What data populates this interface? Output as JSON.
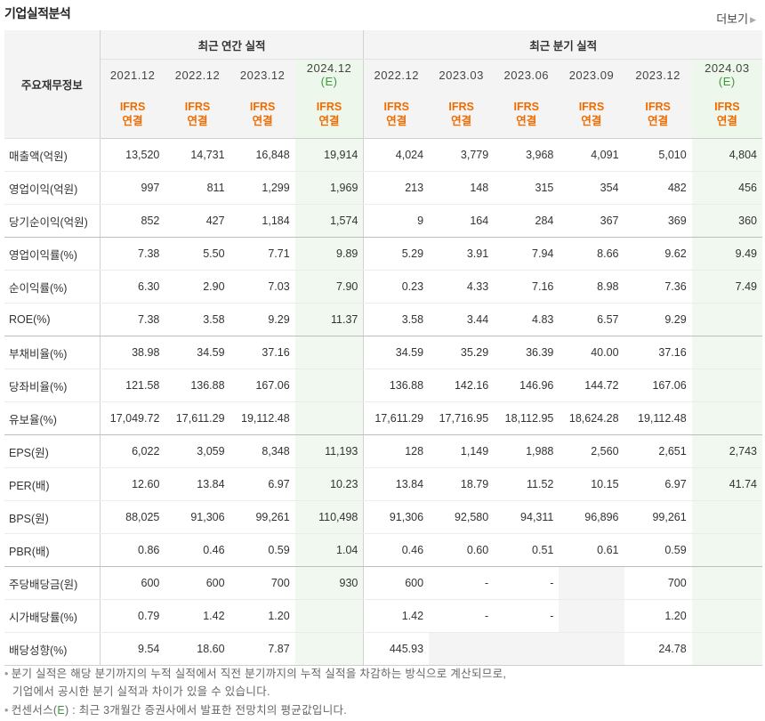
{
  "title": "기업실적분석",
  "more": "더보기",
  "header": {
    "corner": "주요재무정보",
    "annual_group": "최근 연간 실적",
    "quarter_group": "최근 분기 실적",
    "periods": [
      {
        "date": "2021.12",
        "est": "",
        "std": "IFRS",
        "basis": "연결"
      },
      {
        "date": "2022.12",
        "est": "",
        "std": "IFRS",
        "basis": "연결"
      },
      {
        "date": "2023.12",
        "est": "",
        "std": "IFRS",
        "basis": "연결"
      },
      {
        "date": "2024.12",
        "est": "(E)",
        "std": "IFRS",
        "basis": "연결"
      },
      {
        "date": "2022.12",
        "est": "",
        "std": "IFRS",
        "basis": "연결"
      },
      {
        "date": "2023.03",
        "est": "",
        "std": "IFRS",
        "basis": "연결"
      },
      {
        "date": "2023.06",
        "est": "",
        "std": "IFRS",
        "basis": "연결"
      },
      {
        "date": "2023.09",
        "est": "",
        "std": "IFRS",
        "basis": "연결"
      },
      {
        "date": "2023.12",
        "est": "",
        "std": "IFRS",
        "basis": "연결"
      },
      {
        "date": "2024.03",
        "est": "(E)",
        "std": "IFRS",
        "basis": "연결"
      }
    ]
  },
  "rows": [
    {
      "label": "매출액(억원)",
      "values": [
        "13,520",
        "14,731",
        "16,848",
        "19,914",
        "4,024",
        "3,779",
        "3,968",
        "4,091",
        "5,010",
        "4,804"
      ]
    },
    {
      "label": "영업이익(억원)",
      "values": [
        "997",
        "811",
        "1,299",
        "1,969",
        "213",
        "148",
        "315",
        "354",
        "482",
        "456"
      ]
    },
    {
      "label": "당기순이익(억원)",
      "values": [
        "852",
        "427",
        "1,184",
        "1,574",
        "9",
        "164",
        "284",
        "367",
        "369",
        "360"
      ]
    },
    {
      "label": "영업이익률(%)",
      "values": [
        "7.38",
        "5.50",
        "7.71",
        "9.89",
        "5.29",
        "3.91",
        "7.94",
        "8.66",
        "9.62",
        "9.49"
      ]
    },
    {
      "label": "순이익률(%)",
      "values": [
        "6.30",
        "2.90",
        "7.03",
        "7.90",
        "0.23",
        "4.33",
        "7.16",
        "8.98",
        "7.36",
        "7.49"
      ]
    },
    {
      "label": "ROE(%)",
      "values": [
        "7.38",
        "3.58",
        "9.29",
        "11.37",
        "3.58",
        "3.44",
        "4.83",
        "6.57",
        "9.29",
        ""
      ]
    },
    {
      "label": "부채비율(%)",
      "values": [
        "38.98",
        "34.59",
        "37.16",
        "",
        "34.59",
        "35.29",
        "36.39",
        "40.00",
        "37.16",
        ""
      ]
    },
    {
      "label": "당좌비율(%)",
      "values": [
        "121.58",
        "136.88",
        "167.06",
        "",
        "136.88",
        "142.16",
        "146.96",
        "144.72",
        "167.06",
        ""
      ]
    },
    {
      "label": "유보율(%)",
      "values": [
        "17,049.72",
        "17,611.29",
        "19,112.48",
        "",
        "17,611.29",
        "17,716.95",
        "18,112.95",
        "18,624.28",
        "19,112.48",
        ""
      ]
    },
    {
      "label": "EPS(원)",
      "values": [
        "6,022",
        "3,059",
        "8,348",
        "11,193",
        "128",
        "1,149",
        "1,988",
        "2,560",
        "2,651",
        "2,743"
      ]
    },
    {
      "label": "PER(배)",
      "values": [
        "12.60",
        "13.84",
        "6.97",
        "10.23",
        "13.84",
        "18.79",
        "11.52",
        "10.15",
        "6.97",
        "41.74"
      ]
    },
    {
      "label": "BPS(원)",
      "values": [
        "88,025",
        "91,306",
        "99,261",
        "110,498",
        "91,306",
        "92,580",
        "94,311",
        "96,896",
        "99,261",
        ""
      ]
    },
    {
      "label": "PBR(배)",
      "values": [
        "0.86",
        "0.46",
        "0.59",
        "1.04",
        "0.46",
        "0.60",
        "0.51",
        "0.61",
        "0.59",
        ""
      ]
    },
    {
      "label": "주당배당금(원)",
      "values": [
        "600",
        "600",
        "700",
        "930",
        "600",
        "-",
        "-",
        "",
        "700",
        ""
      ]
    },
    {
      "label": "시가배당률(%)",
      "values": [
        "0.79",
        "1.42",
        "1.20",
        "",
        "1.42",
        "-",
        "-",
        "",
        "1.20",
        ""
      ]
    },
    {
      "label": "배당성향(%)",
      "values": [
        "9.54",
        "18.60",
        "7.87",
        "",
        "445.93",
        "",
        "",
        "",
        "24.78",
        ""
      ]
    }
  ],
  "notes": {
    "line1": "분기 실적은 해당 분기까지의 누적 실적에서 직전 분기까지의 누적 실적을 차감하는 방식으로 계산되므로,",
    "line2": "기업에서 공시한 분기 실적과 차이가 있을 수 있습니다.",
    "line3_pre": "컨센서스(",
    "line3_e": "E",
    "line3_post": ") : 최근 3개월간 증권사에서 발표한 전망치의 평균값입니다."
  }
}
